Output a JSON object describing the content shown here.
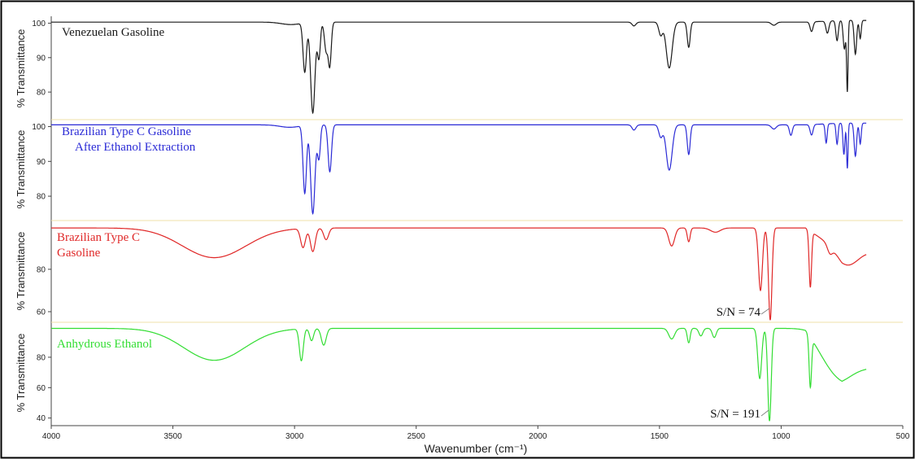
{
  "chart_data": {
    "type": "line",
    "xlabel": "Wavenumber (cm⁻¹)",
    "x_axis": {
      "range": [
        4000,
        500
      ],
      "reversed": true,
      "ticks": [
        4000,
        3500,
        3000,
        2500,
        2000,
        1500,
        1000,
        500
      ]
    },
    "panels": [
      {
        "key": "p1",
        "ylabel": "% Transmittance",
        "label_lines": [
          "Venezuelan Gasoline"
        ],
        "color": "#1a1a1a",
        "ylim": [
          72,
          102
        ],
        "yticks": [
          80,
          90,
          100
        ],
        "baseline": 100.3,
        "features": [
          [
            3015,
            99.6,
            40
          ],
          [
            2958,
            86,
            7
          ],
          [
            2925,
            74,
            9
          ],
          [
            2900,
            90,
            6
          ],
          [
            2870,
            92,
            7
          ],
          [
            2855,
            88,
            6
          ],
          [
            1605,
            99.2,
            8
          ],
          [
            1495,
            96.5,
            8
          ],
          [
            1460,
            87,
            12
          ],
          [
            1380,
            93,
            6
          ],
          [
            1030,
            99.4,
            10
          ],
          [
            875,
            97.5,
            6
          ],
          [
            810,
            96.8,
            6
          ],
          [
            770,
            94.5,
            5
          ],
          [
            740,
            92,
            5
          ],
          [
            728,
            80,
            3
          ],
          [
            695,
            90.5,
            5
          ],
          [
            675,
            95,
            4
          ]
        ],
        "end_value": 100.8,
        "annotations": []
      },
      {
        "key": "p2",
        "ylabel": "% Transmittance",
        "label_lines": [
          "Brazilian Type C Gasoline",
          "After Ethanol Extraction"
        ],
        "color": "#2b2bd6",
        "ylim": [
          73,
          102
        ],
        "yticks": [
          80,
          90,
          100
        ],
        "baseline": 100.5,
        "features": [
          [
            3020,
            99.8,
            40
          ],
          [
            2958,
            81,
            7
          ],
          [
            2925,
            75,
            9
          ],
          [
            2900,
            91,
            6
          ],
          [
            2855,
            87,
            7
          ],
          [
            1605,
            99,
            8
          ],
          [
            1495,
            97,
            8
          ],
          [
            1460,
            87.5,
            12
          ],
          [
            1380,
            92,
            6
          ],
          [
            1030,
            99.3,
            10
          ],
          [
            960,
            97.5,
            6
          ],
          [
            875,
            97.5,
            6
          ],
          [
            815,
            95,
            4
          ],
          [
            770,
            94.5,
            4
          ],
          [
            742,
            91.5,
            4
          ],
          [
            728,
            87.5,
            3
          ],
          [
            695,
            91,
            5
          ],
          [
            675,
            94.5,
            4
          ]
        ],
        "end_value": 101,
        "annotations": []
      },
      {
        "key": "p3",
        "ylabel": "% Transmittance",
        "label_lines": [
          "Brazilian Type C",
          "Gasoline"
        ],
        "color": "#e02828",
        "ylim": [
          55,
          103
        ],
        "yticks": [
          60,
          80
        ],
        "baseline": 99.5,
        "features": [
          [
            3330,
            85.5,
            130
          ],
          [
            2965,
            90.5,
            10
          ],
          [
            2925,
            88.5,
            10
          ],
          [
            2870,
            94,
            10
          ],
          [
            1450,
            91,
            12
          ],
          [
            1380,
            93,
            6
          ],
          [
            1270,
            97.5,
            20
          ],
          [
            1085,
            70,
            8
          ],
          [
            1045,
            56,
            7
          ],
          [
            880,
            73,
            5
          ],
          [
            800,
            96,
            10
          ],
          [
            725,
            93.5,
            40
          ]
        ],
        "end_value": 88,
        "annotations": [
          {
            "text": "S/N = 74",
            "x": 1045
          }
        ]
      },
      {
        "key": "p4",
        "ylabel": "% Transmittance",
        "label_lines": [
          "Anhydrous Ethanol"
        ],
        "color": "#33dd33",
        "ylim": [
          35,
          103
        ],
        "yticks": [
          40,
          60,
          80
        ],
        "baseline": 99,
        "features": [
          [
            3330,
            78,
            125
          ],
          [
            2972,
            78,
            8
          ],
          [
            2930,
            91,
            8
          ],
          [
            2880,
            88,
            10
          ],
          [
            1450,
            92,
            12
          ],
          [
            1380,
            89.5,
            6
          ],
          [
            1330,
            94,
            8
          ],
          [
            1275,
            93,
            8
          ],
          [
            1088,
            66,
            8
          ],
          [
            1048,
            38,
            7
          ],
          [
            880,
            66,
            5
          ],
          [
            780,
            89,
            60
          ]
        ],
        "end_value": 73,
        "annotations": [
          {
            "text": "S/N = 191",
            "x": 1048
          }
        ]
      }
    ]
  }
}
